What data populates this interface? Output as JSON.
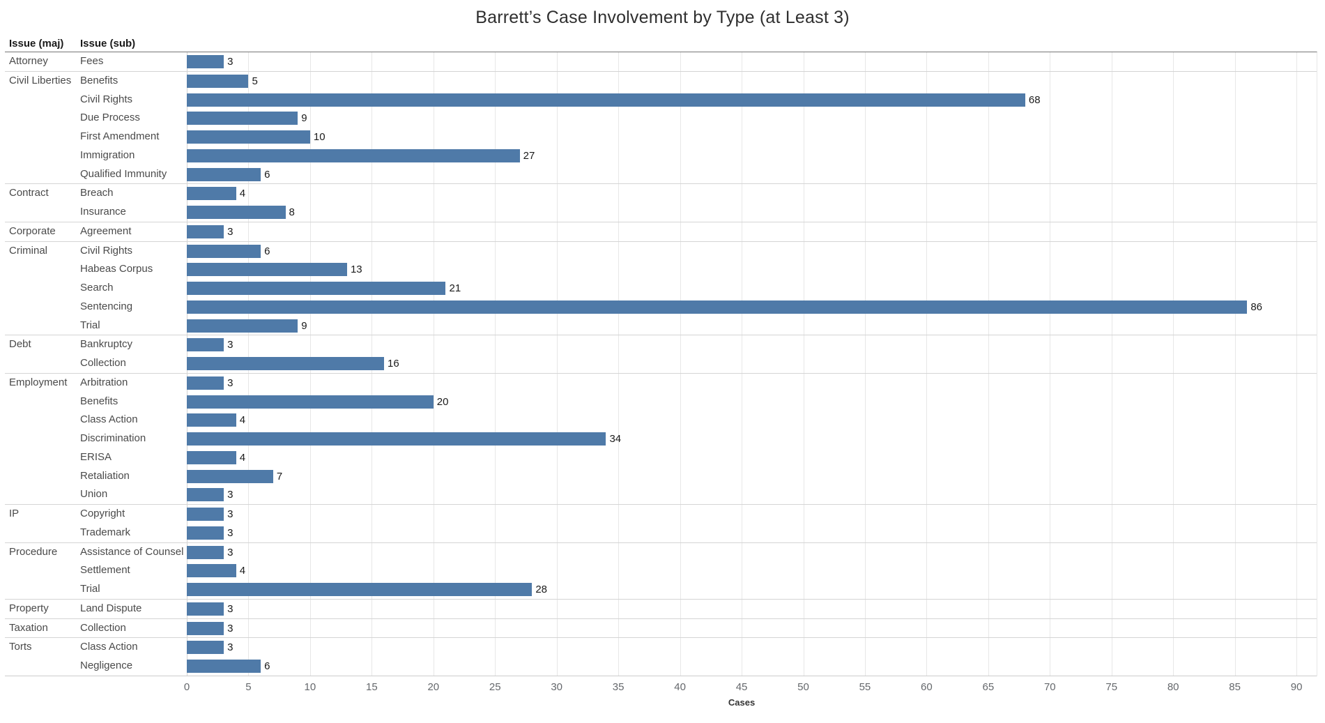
{
  "title": "Barrett’s Case Involvement by Type (at Least 3)",
  "columns": {
    "major": "Issue (maj)",
    "sub": "Issue (sub)"
  },
  "colors": {
    "bar": "#4f7aa8",
    "gridline": "#e7e7e7",
    "group_divider": "#d4d4d4",
    "header_underline": "#757575",
    "row_label_text": "#4a4a4a",
    "value_label_text": "#1a1a1a",
    "tick_label_text": "#65686c"
  },
  "chart_data": {
    "type": "bar",
    "orientation": "horizontal",
    "title": "Barrett’s Case Involvement by Type (at Least 3)",
    "xlabel": "Cases",
    "ylabel": "",
    "xlim": [
      0,
      90
    ],
    "tick_step": 5,
    "ticks": [
      0,
      5,
      10,
      15,
      20,
      25,
      30,
      35,
      40,
      45,
      50,
      55,
      60,
      65,
      70,
      75,
      80,
      85,
      90
    ],
    "grid": true,
    "bar_labels": true,
    "groups": [
      {
        "major": "Attorney",
        "items": [
          {
            "sub": "Fees",
            "value": 3
          }
        ]
      },
      {
        "major": "Civil Liberties",
        "items": [
          {
            "sub": "Benefits",
            "value": 5
          },
          {
            "sub": "Civil Rights",
            "value": 68
          },
          {
            "sub": "Due Process",
            "value": 9
          },
          {
            "sub": "First Amendment",
            "value": 10
          },
          {
            "sub": "Immigration",
            "value": 27
          },
          {
            "sub": "Qualified Immunity",
            "value": 6
          }
        ]
      },
      {
        "major": "Contract",
        "items": [
          {
            "sub": "Breach",
            "value": 4
          },
          {
            "sub": "Insurance",
            "value": 8
          }
        ]
      },
      {
        "major": "Corporate",
        "items": [
          {
            "sub": "Agreement",
            "value": 3
          }
        ]
      },
      {
        "major": "Criminal",
        "items": [
          {
            "sub": "Civil Rights",
            "value": 6
          },
          {
            "sub": "Habeas Corpus",
            "value": 13
          },
          {
            "sub": "Search",
            "value": 21
          },
          {
            "sub": "Sentencing",
            "value": 86
          },
          {
            "sub": "Trial",
            "value": 9
          }
        ]
      },
      {
        "major": "Debt",
        "items": [
          {
            "sub": "Bankruptcy",
            "value": 3
          },
          {
            "sub": "Collection",
            "value": 16
          }
        ]
      },
      {
        "major": "Employment",
        "items": [
          {
            "sub": "Arbitration",
            "value": 3
          },
          {
            "sub": "Benefits",
            "value": 20
          },
          {
            "sub": "Class Action",
            "value": 4
          },
          {
            "sub": "Discrimination",
            "value": 34
          },
          {
            "sub": "ERISA",
            "value": 4
          },
          {
            "sub": "Retaliation",
            "value": 7
          },
          {
            "sub": "Union",
            "value": 3
          }
        ]
      },
      {
        "major": "IP",
        "items": [
          {
            "sub": "Copyright",
            "value": 3
          },
          {
            "sub": "Trademark",
            "value": 3
          }
        ]
      },
      {
        "major": "Procedure",
        "items": [
          {
            "sub": "Assistance of Counsel",
            "value": 3
          },
          {
            "sub": "Settlement",
            "value": 4
          },
          {
            "sub": "Trial",
            "value": 28
          }
        ]
      },
      {
        "major": "Property",
        "items": [
          {
            "sub": "Land Dispute",
            "value": 3
          }
        ]
      },
      {
        "major": "Taxation",
        "items": [
          {
            "sub": "Collection",
            "value": 3
          }
        ]
      },
      {
        "major": "Torts",
        "items": [
          {
            "sub": "Class Action",
            "value": 3
          },
          {
            "sub": "Negligence",
            "value": 6
          }
        ]
      }
    ]
  }
}
